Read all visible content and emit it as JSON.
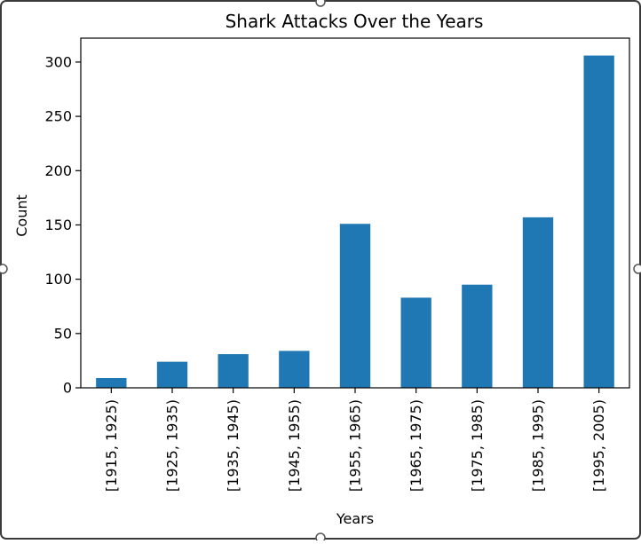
{
  "chart_data": {
    "type": "bar",
    "title": "Shark Attacks Over the Years",
    "xlabel": "Years",
    "ylabel": "Count",
    "categories": [
      "[1915, 1925)",
      "[1925, 1935)",
      "[1935, 1945)",
      "[1945, 1955)",
      "[1955, 1965)",
      "[1965, 1975)",
      "[1975, 1985)",
      "[1985, 1995)",
      "[1995, 2005)"
    ],
    "values": [
      9,
      24,
      31,
      34,
      151,
      83,
      95,
      157,
      306
    ],
    "ylim": [
      0,
      322
    ],
    "yticks": [
      0,
      50,
      100,
      150,
      200,
      250,
      300
    ],
    "grid": false,
    "bar_color": "#1f77b4"
  }
}
